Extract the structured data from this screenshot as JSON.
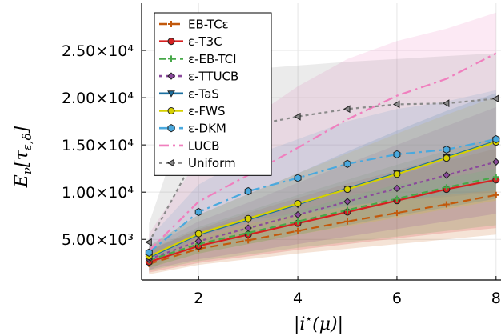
{
  "chart_data": {
    "type": "line",
    "xlabel": "|i*(μ)|",
    "ylabel": "E_ν[τ_{ε,δ}]",
    "x": [
      1,
      2,
      3,
      4,
      5,
      6,
      7,
      8
    ],
    "xlim": [
      0.85,
      8.1
    ],
    "ylim": [
      700,
      30000
    ],
    "x_ticks": [
      2,
      4,
      6,
      8
    ],
    "x_tick_labels": [
      "2",
      "4",
      "6",
      "8"
    ],
    "y_ticks": [
      5000,
      10000,
      15000,
      20000,
      25000
    ],
    "y_tick_labels": [
      "5.00×10³",
      "1.00×10⁴",
      "1.50×10⁴",
      "2.00×10⁴",
      "2.50×10⁴"
    ],
    "grid": true,
    "legend_position": "top-left",
    "series": [
      {
        "name": "EB-TCε",
        "color": "#c2590c",
        "marker": "cross",
        "dash": "10,6",
        "values": [
          2400,
          4000,
          4900,
          5900,
          6900,
          7800,
          8700,
          9700
        ],
        "band_low": [
          1300,
          2300,
          2900,
          3500,
          4000,
          4500,
          5000,
          5500
        ],
        "band_high": [
          3900,
          6000,
          7400,
          8900,
          10300,
          11800,
          13300,
          14600
        ]
      },
      {
        "name": "ε-T3C",
        "color": "#d62020",
        "marker": "circle",
        "dash": "",
        "values": [
          2600,
          4300,
          5500,
          6700,
          7900,
          9100,
          10300,
          11300
        ],
        "band_low": [
          1500,
          2500,
          3200,
          3900,
          4500,
          5100,
          5700,
          6200
        ],
        "band_high": [
          3800,
          6100,
          7800,
          9400,
          10900,
          12300,
          13800,
          15200
        ]
      },
      {
        "name": "ε-EB-TCI",
        "color": "#47a849",
        "marker": "cross",
        "dash": "8,5",
        "values": [
          2800,
          4500,
          5700,
          6900,
          8100,
          9300,
          10500,
          11600
        ],
        "band_low": [
          1700,
          2700,
          3400,
          4100,
          4700,
          5300,
          5900,
          6500
        ],
        "band_high": [
          3900,
          6300,
          8000,
          9700,
          11300,
          12900,
          14400,
          15800
        ]
      },
      {
        "name": "ε-TTUCB",
        "color": "#8b4a9c",
        "marker": "diamond",
        "dash": "4,4",
        "values": [
          2900,
          4800,
          6200,
          7600,
          9000,
          10400,
          11800,
          13200
        ],
        "band_low": [
          1800,
          2900,
          3700,
          4500,
          5300,
          6100,
          6900,
          7700
        ],
        "band_high": [
          4200,
          6900,
          8900,
          11000,
          13000,
          15000,
          17000,
          19000
        ]
      },
      {
        "name": "ε-TaS",
        "color": "#1a6fa0",
        "marker": "triangle-down",
        "dash": "",
        "values": [
          3100,
          5500,
          7100,
          8700,
          10400,
          12000,
          13700,
          15400
        ],
        "band_low": [
          2000,
          3500,
          4500,
          5500,
          6500,
          7500,
          8400,
          9300
        ],
        "band_high": [
          4300,
          7600,
          9800,
          12000,
          14300,
          16500,
          18600,
          20500
        ]
      },
      {
        "name": "ε-FWS",
        "color": "#d6d000",
        "marker": "circle",
        "dash": "",
        "values": [
          3200,
          5600,
          7200,
          8800,
          10300,
          11900,
          13600,
          15300
        ],
        "band_low": [
          2000,
          3500,
          4500,
          5500,
          6400,
          7300,
          8200,
          9100
        ],
        "band_high": [
          4300,
          7600,
          9800,
          12000,
          14100,
          16200,
          18200,
          20100
        ]
      },
      {
        "name": "ε-DKM",
        "color": "#4aa9de",
        "marker": "hexagon",
        "dash": "12,5,3,5",
        "values": [
          3600,
          7900,
          10100,
          11500,
          13000,
          14000,
          14500,
          15600
        ],
        "band_low": [
          2300,
          5300,
          6700,
          7600,
          8500,
          9200,
          9700,
          10200
        ],
        "band_high": [
          5100,
          10800,
          13700,
          15600,
          17500,
          18800,
          19600,
          20800
        ]
      },
      {
        "name": "LUCB",
        "color": "#f07fbe",
        "marker": "none",
        "dash": "12,5,3,5",
        "values": [
          3800,
          9000,
          11800,
          14700,
          17700,
          20200,
          22000,
          24700
        ],
        "band_low": [
          2200,
          5000,
          6500,
          8000,
          9500,
          10800,
          11500,
          12500
        ],
        "band_high": [
          5600,
          13500,
          17600,
          21200,
          24100,
          26000,
          27300,
          29000
        ]
      },
      {
        "name": "Uniform",
        "color": "#8a8a8a",
        "marker": "triangle-left",
        "dash": "4,4",
        "values": [
          4700,
          14400,
          17000,
          18000,
          18800,
          19300,
          19400,
          19900
        ],
        "band_low": [
          1600,
          5300,
          7000,
          7800,
          8600,
          9100,
          9500,
          10000
        ],
        "band_high": [
          6700,
          22000,
          23000,
          23400,
          23800,
          24100,
          24400,
          24700
        ]
      }
    ]
  }
}
